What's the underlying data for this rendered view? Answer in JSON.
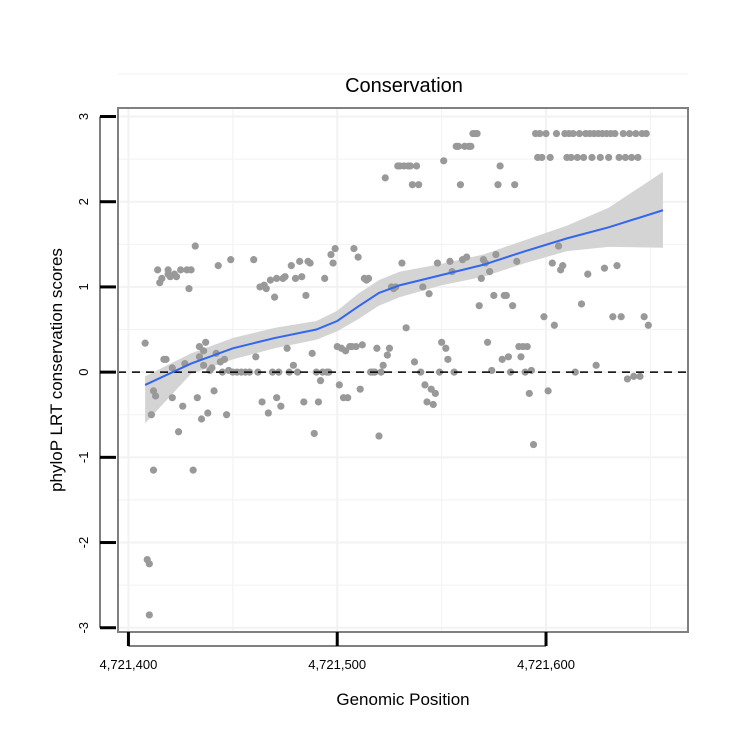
{
  "chart_data": {
    "type": "scatter",
    "title": "Conservation",
    "xlabel": "Genomic Position",
    "ylabel": "phyloP LRT conservation scores",
    "xlim": [
      4721395,
      4721668
    ],
    "ylim": [
      -3.05,
      3.1
    ],
    "x_ticks": [
      4721400,
      4721500,
      4721600
    ],
    "x_tick_labels": [
      "4,721,400",
      "4,721,500",
      "4,721,600"
    ],
    "y_ticks": [
      -3,
      -2,
      -1,
      0,
      1,
      2,
      3
    ],
    "y_tick_labels": [
      "-3",
      "-2",
      "-1",
      "0",
      "1",
      "2",
      "3"
    ],
    "grid": true,
    "reference_line": {
      "y": 0,
      "style": "dashed",
      "color": "#000000"
    },
    "colors": {
      "points": "#999999",
      "smooth": "#3366ee",
      "band": "#d4d4d4",
      "panel_border": "#808080",
      "grid": "#f2f2f2"
    },
    "smooth_curve": {
      "x": [
        4721408,
        4721430,
        4721450,
        4721470,
        4721490,
        4721500,
        4721510,
        4721520,
        4721530,
        4721550,
        4721570,
        4721590,
        4721610,
        4721630,
        4721656
      ],
      "y": [
        -0.15,
        0.1,
        0.28,
        0.4,
        0.5,
        0.6,
        0.77,
        0.93,
        1.02,
        1.14,
        1.26,
        1.42,
        1.57,
        1.7,
        1.9
      ],
      "upper": [
        -0.05,
        0.22,
        0.4,
        0.52,
        0.6,
        0.72,
        0.92,
        1.08,
        1.18,
        1.27,
        1.38,
        1.55,
        1.72,
        1.93,
        2.35
      ],
      "lower": [
        -0.6,
        -0.02,
        0.15,
        0.28,
        0.38,
        0.48,
        0.62,
        0.78,
        0.88,
        1.02,
        1.12,
        1.28,
        1.42,
        1.47,
        1.46
      ]
    },
    "points": [
      [
        4721408,
        0.34
      ],
      [
        4721409,
        -2.2
      ],
      [
        4721410,
        -2.85
      ],
      [
        4721410,
        -2.25
      ],
      [
        4721411,
        -0.5
      ],
      [
        4721412,
        -1.15
      ],
      [
        4721412,
        -0.22
      ],
      [
        4721413,
        -0.28
      ],
      [
        4721414,
        1.2
      ],
      [
        4721415,
        1.05
      ],
      [
        4721416,
        1.1
      ],
      [
        4721417,
        0.15
      ],
      [
        4721418,
        0.15
      ],
      [
        4721419,
        1.15
      ],
      [
        4721419,
        1.2
      ],
      [
        4721420,
        1.12
      ],
      [
        4721421,
        0.05
      ],
      [
        4721421,
        -0.3
      ],
      [
        4721422,
        1.15
      ],
      [
        4721423,
        1.12
      ],
      [
        4721424,
        -0.7
      ],
      [
        4721425,
        1.2
      ],
      [
        4721426,
        -0.4
      ],
      [
        4721427,
        0.1
      ],
      [
        4721428,
        1.2
      ],
      [
        4721429,
        0.98
      ],
      [
        4721430,
        1.2
      ],
      [
        4721431,
        -1.15
      ],
      [
        4721432,
        1.48
      ],
      [
        4721433,
        -0.3
      ],
      [
        4721434,
        0.3
      ],
      [
        4721434,
        0.18
      ],
      [
        4721435,
        -0.55
      ],
      [
        4721436,
        0.25
      ],
      [
        4721436,
        0.08
      ],
      [
        4721437,
        0.35
      ],
      [
        4721438,
        -0.48
      ],
      [
        4721439,
        0.02
      ],
      [
        4721440,
        0.05
      ],
      [
        4721441,
        -0.22
      ],
      [
        4721442,
        0.22
      ],
      [
        4721443,
        1.25
      ],
      [
        4721444,
        0.12
      ],
      [
        4721445,
        0.0
      ],
      [
        4721446,
        0.15
      ],
      [
        4721447,
        -0.5
      ],
      [
        4721448,
        0.02
      ],
      [
        4721449,
        1.32
      ],
      [
        4721450,
        0.0
      ],
      [
        4721452,
        0.0
      ],
      [
        4721454,
        0.0
      ],
      [
        4721456,
        0.0
      ],
      [
        4721458,
        0.0
      ],
      [
        4721460,
        1.32
      ],
      [
        4721461,
        0.18
      ],
      [
        4721462,
        0.0
      ],
      [
        4721463,
        1.0
      ],
      [
        4721464,
        -0.35
      ],
      [
        4721465,
        1.02
      ],
      [
        4721466,
        0.98
      ],
      [
        4721467,
        -0.48
      ],
      [
        4721468,
        1.08
      ],
      [
        4721469,
        0.0
      ],
      [
        4721470,
        0.88
      ],
      [
        4721471,
        1.1
      ],
      [
        4721471,
        -0.3
      ],
      [
        4721472,
        0.0
      ],
      [
        4721473,
        -0.4
      ],
      [
        4721474,
        1.1
      ],
      [
        4721475,
        1.12
      ],
      [
        4721476,
        0.28
      ],
      [
        4721477,
        0.0
      ],
      [
        4721478,
        1.25
      ],
      [
        4721479,
        0.08
      ],
      [
        4721480,
        1.1
      ],
      [
        4721481,
        0.0
      ],
      [
        4721482,
        1.3
      ],
      [
        4721483,
        1.12
      ],
      [
        4721484,
        -0.35
      ],
      [
        4721485,
        0.9
      ],
      [
        4721486,
        1.3
      ],
      [
        4721487,
        1.28
      ],
      [
        4721488,
        0.22
      ],
      [
        4721489,
        -0.72
      ],
      [
        4721490,
        0.0
      ],
      [
        4721491,
        -0.35
      ],
      [
        4721492,
        -0.1
      ],
      [
        4721493,
        0.0
      ],
      [
        4721494,
        1.1
      ],
      [
        4721495,
        0.0
      ],
      [
        4721496,
        0.0
      ],
      [
        4721497,
        1.38
      ],
      [
        4721498,
        1.28
      ],
      [
        4721499,
        1.45
      ],
      [
        4721500,
        0.3
      ],
      [
        4721501,
        -0.15
      ],
      [
        4721502,
        0.28
      ],
      [
        4721503,
        -0.3
      ],
      [
        4721504,
        0.25
      ],
      [
        4721505,
        -0.3
      ],
      [
        4721506,
        0.3
      ],
      [
        4721507,
        0.3
      ],
      [
        4721508,
        1.45
      ],
      [
        4721509,
        0.3
      ],
      [
        4721510,
        1.35
      ],
      [
        4721511,
        -0.2
      ],
      [
        4721512,
        0.32
      ],
      [
        4721513,
        1.1
      ],
      [
        4721514,
        1.08
      ],
      [
        4721515,
        1.1
      ],
      [
        4721516,
        0.0
      ],
      [
        4721517,
        0.0
      ],
      [
        4721518,
        0.0
      ],
      [
        4721519,
        0.28
      ],
      [
        4721520,
        -0.75
      ],
      [
        4721521,
        0.0
      ],
      [
        4721522,
        0.08
      ],
      [
        4721523,
        2.28
      ],
      [
        4721524,
        0.2
      ],
      [
        4721525,
        0.28
      ],
      [
        4721526,
        1.0
      ],
      [
        4721527,
        0.98
      ],
      [
        4721528,
        1.0
      ],
      [
        4721529,
        2.42
      ],
      [
        4721530,
        2.42
      ],
      [
        4721531,
        1.28
      ],
      [
        4721532,
        2.42
      ],
      [
        4721533,
        0.52
      ],
      [
        4721534,
        2.42
      ],
      [
        4721535,
        2.42
      ],
      [
        4721536,
        2.2
      ],
      [
        4721537,
        0.12
      ],
      [
        4721538,
        2.42
      ],
      [
        4721539,
        2.2
      ],
      [
        4721540,
        0.0
      ],
      [
        4721541,
        1.0
      ],
      [
        4721542,
        -0.15
      ],
      [
        4721543,
        -0.35
      ],
      [
        4721544,
        0.92
      ],
      [
        4721545,
        -0.2
      ],
      [
        4721546,
        -0.38
      ],
      [
        4721547,
        -0.25
      ],
      [
        4721548,
        1.28
      ],
      [
        4721549,
        0.0
      ],
      [
        4721550,
        0.35
      ],
      [
        4721551,
        2.48
      ],
      [
        4721552,
        0.28
      ],
      [
        4721553,
        0.15
      ],
      [
        4721554,
        1.3
      ],
      [
        4721555,
        1.18
      ],
      [
        4721556,
        0.0
      ],
      [
        4721557,
        2.65
      ],
      [
        4721558,
        2.65
      ],
      [
        4721559,
        2.2
      ],
      [
        4721560,
        1.32
      ],
      [
        4721561,
        2.65
      ],
      [
        4721562,
        1.35
      ],
      [
        4721563,
        2.65
      ],
      [
        4721564,
        2.65
      ],
      [
        4721565,
        2.8
      ],
      [
        4721566,
        2.8
      ],
      [
        4721567,
        2.8
      ],
      [
        4721568,
        0.78
      ],
      [
        4721569,
        1.1
      ],
      [
        4721570,
        1.32
      ],
      [
        4721571,
        1.28
      ],
      [
        4721572,
        0.35
      ],
      [
        4721573,
        1.18
      ],
      [
        4721574,
        0.02
      ],
      [
        4721575,
        0.9
      ],
      [
        4721576,
        1.38
      ],
      [
        4721577,
        2.2
      ],
      [
        4721578,
        2.42
      ],
      [
        4721579,
        0.15
      ],
      [
        4721580,
        0.9
      ],
      [
        4721581,
        0.9
      ],
      [
        4721582,
        0.18
      ],
      [
        4721583,
        0.0
      ],
      [
        4721584,
        0.78
      ],
      [
        4721585,
        2.2
      ],
      [
        4721586,
        1.3
      ],
      [
        4721587,
        0.3
      ],
      [
        4721588,
        0.18
      ],
      [
        4721589,
        0.3
      ],
      [
        4721590,
        0.0
      ],
      [
        4721591,
        0.3
      ],
      [
        4721592,
        -0.25
      ],
      [
        4721593,
        0.02
      ],
      [
        4721594,
        -0.85
      ],
      [
        4721595,
        2.8
      ],
      [
        4721596,
        2.52
      ],
      [
        4721597,
        2.8
      ],
      [
        4721598,
        2.52
      ],
      [
        4721599,
        0.65
      ],
      [
        4721600,
        2.8
      ],
      [
        4721601,
        -0.22
      ],
      [
        4721602,
        2.52
      ],
      [
        4721603,
        1.28
      ],
      [
        4721604,
        0.55
      ],
      [
        4721605,
        2.8
      ],
      [
        4721606,
        1.48
      ],
      [
        4721607,
        1.2
      ],
      [
        4721608,
        1.25
      ],
      [
        4721609,
        2.8
      ],
      [
        4721610,
        2.52
      ],
      [
        4721611,
        2.8
      ],
      [
        4721612,
        2.52
      ],
      [
        4721613,
        2.8
      ],
      [
        4721614,
        0.0
      ],
      [
        4721615,
        2.52
      ],
      [
        4721616,
        2.8
      ],
      [
        4721617,
        0.8
      ],
      [
        4721618,
        2.52
      ],
      [
        4721619,
        2.8
      ],
      [
        4721620,
        1.15
      ],
      [
        4721621,
        2.8
      ],
      [
        4721622,
        2.52
      ],
      [
        4721623,
        2.8
      ],
      [
        4721624,
        0.08
      ],
      [
        4721625,
        2.8
      ],
      [
        4721626,
        2.52
      ],
      [
        4721627,
        2.8
      ],
      [
        4721628,
        1.22
      ],
      [
        4721629,
        2.8
      ],
      [
        4721630,
        2.52
      ],
      [
        4721631,
        2.8
      ],
      [
        4721632,
        0.65
      ],
      [
        4721633,
        2.8
      ],
      [
        4721634,
        1.25
      ],
      [
        4721635,
        2.52
      ],
      [
        4721636,
        0.65
      ],
      [
        4721637,
        2.8
      ],
      [
        4721638,
        2.52
      ],
      [
        4721639,
        -0.08
      ],
      [
        4721640,
        2.8
      ],
      [
        4721641,
        2.52
      ],
      [
        4721642,
        -0.05
      ],
      [
        4721643,
        2.8
      ],
      [
        4721644,
        2.52
      ],
      [
        4721645,
        -0.05
      ],
      [
        4721646,
        2.8
      ],
      [
        4721647,
        0.65
      ],
      [
        4721648,
        2.8
      ],
      [
        4721649,
        0.55
      ]
    ]
  }
}
